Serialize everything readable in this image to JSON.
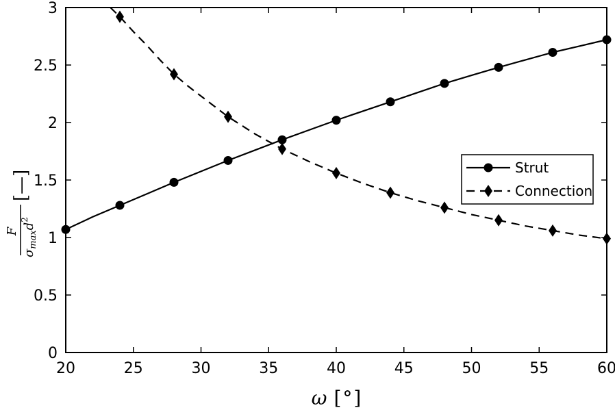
{
  "chart_data": {
    "type": "line",
    "x_tick_labels": [
      "20",
      "25",
      "30",
      "35",
      "40",
      "45",
      "50",
      "55",
      "60"
    ],
    "y_tick_labels": [
      "0",
      "0.5",
      "1",
      "1.5",
      "2",
      "2.5",
      "3"
    ],
    "xlim": [
      20,
      60
    ],
    "ylim": [
      0,
      3
    ],
    "xlabel": {
      "symbol": "ω",
      "unit_open": "[",
      "unit": "°",
      "unit_close": "]"
    },
    "ylabel": {
      "numerator": "F",
      "denominator_sigma": "σ",
      "denominator_sub": "max",
      "denominator_d": "d",
      "denominator_exp": "2",
      "unit": "[—]"
    },
    "grid": false,
    "legend_position": "right",
    "series": [
      {
        "name": "Strut",
        "line_style": "solid",
        "marker": "circle",
        "color": "#000000",
        "x": [
          20,
          24,
          28,
          32,
          36,
          40,
          44,
          48,
          52,
          56,
          60
        ],
        "y": [
          1.07,
          1.28,
          1.48,
          1.67,
          1.85,
          2.02,
          2.18,
          2.34,
          2.48,
          2.61,
          2.72
        ],
        "curve_x": [
          20,
          22,
          24,
          26,
          28,
          30,
          32,
          34,
          36,
          38,
          40,
          42,
          44,
          46,
          48,
          50,
          52,
          54,
          56,
          58,
          60
        ],
        "curve_y": [
          1.07,
          1.18,
          1.28,
          1.38,
          1.48,
          1.575,
          1.67,
          1.76,
          1.85,
          1.935,
          2.02,
          2.1,
          2.18,
          2.26,
          2.34,
          2.41,
          2.48,
          2.545,
          2.61,
          2.665,
          2.72
        ]
      },
      {
        "name": "Connection",
        "line_style": "dashed",
        "marker": "diamond",
        "color": "#000000",
        "x": [
          24,
          28,
          32,
          36,
          40,
          44,
          48,
          52,
          56,
          60
        ],
        "y": [
          2.92,
          2.42,
          2.05,
          1.77,
          1.56,
          1.39,
          1.26,
          1.15,
          1.06,
          0.99
        ],
        "curve_x": [
          23.3,
          24,
          25,
          26,
          27,
          28,
          29,
          30,
          31,
          32,
          34,
          36,
          38,
          40,
          42,
          44,
          46,
          48,
          50,
          52,
          54,
          56,
          58,
          60
        ],
        "curve_y": [
          3.0,
          2.92,
          2.79,
          2.67,
          2.54,
          2.42,
          2.32,
          2.23,
          2.14,
          2.05,
          1.9,
          1.77,
          1.66,
          1.56,
          1.47,
          1.39,
          1.32,
          1.26,
          1.2,
          1.15,
          1.1,
          1.06,
          1.02,
          0.99
        ]
      }
    ]
  }
}
